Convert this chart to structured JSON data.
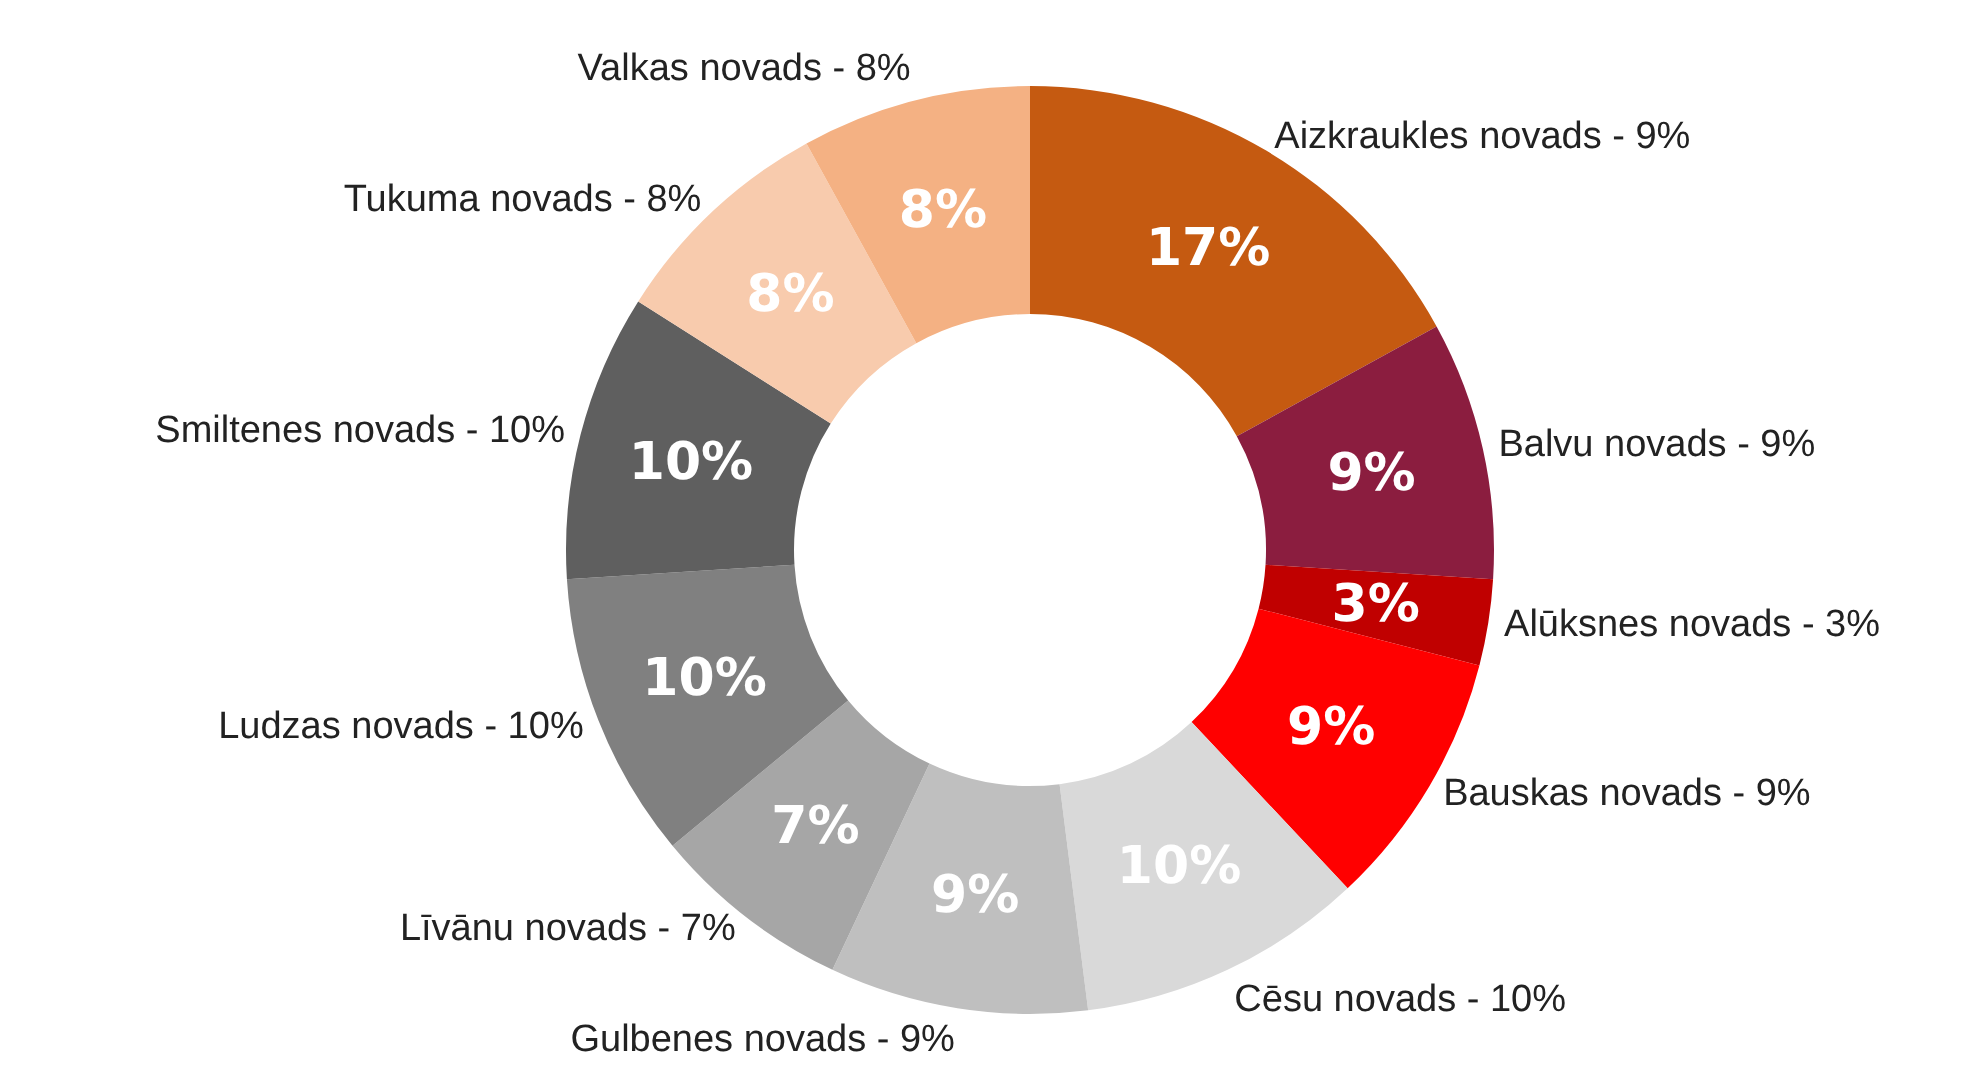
{
  "chart_data": {
    "type": "donut",
    "categories": [
      "Aizkraukles novads - 9%",
      "Balvu novads - 9%",
      "Alūksnes novads - 3%",
      "Bauskas novads - 9%",
      "Cēsu novads - 10%",
      "Gulbenes novads - 9%",
      "Līvānu novads - 7%",
      "Ludzas novads - 10%",
      "Smiltenes novads - 10%",
      "Tukuma novads - 8%",
      "Valkas novads - 8%"
    ],
    "values": [
      17,
      9,
      3,
      9,
      10,
      9,
      7,
      10,
      10,
      8,
      8
    ],
    "value_labels": [
      "17%",
      "9%",
      "3%",
      "9%",
      "10%",
      "9%",
      "7%",
      "10%",
      "10%",
      "8%",
      "8%"
    ],
    "colors": [
      "#c55a11",
      "#8b1d3f",
      "#c00000",
      "#ff0000",
      "#d9d9d9",
      "#bfbfbf",
      "#a6a6a6",
      "#808080",
      "#5f5f5f",
      "#f8cbad",
      "#f4b183"
    ]
  }
}
